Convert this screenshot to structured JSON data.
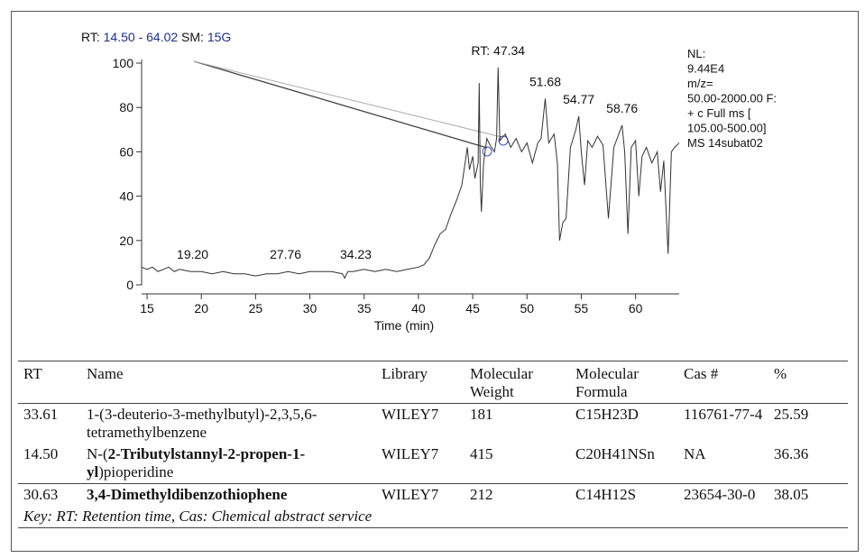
{
  "chart_data": {
    "type": "line",
    "header": {
      "rt_label": "RT:",
      "rt_range": "14.50 - 64.02",
      "sm_label": "SM:",
      "sm_value": "15G"
    },
    "info": [
      "NL:",
      "9.44E4",
      "m/z=",
      "50.00-2000.00 F:",
      "+ c Full ms [",
      "105.00-500.00]",
      "MS 14subat02"
    ],
    "xlabel": "Time (min)",
    "color": "#333333",
    "xlim": [
      14.5,
      64.02
    ],
    "xticks": [
      15,
      20,
      25,
      30,
      35,
      40,
      45,
      50,
      55,
      60
    ],
    "ylim": [
      0,
      100
    ],
    "yticks": [
      0,
      20,
      40,
      60,
      80,
      100
    ],
    "x": [
      14.5,
      15,
      15.5,
      16,
      16.5,
      17,
      17.5,
      18,
      19,
      20,
      21,
      22,
      23,
      24,
      25,
      26,
      27,
      28,
      29,
      30,
      31,
      32,
      33,
      33.2,
      33.5,
      34,
      35,
      36,
      37,
      38,
      39,
      40,
      40.5,
      41,
      41.5,
      42,
      42.5,
      43,
      43.5,
      44,
      44.3,
      44.5,
      44.7,
      45,
      45.2,
      45.5,
      45.6,
      45.7,
      45.8,
      46,
      46.3,
      46.6,
      47,
      47.2,
      47.34,
      47.5,
      48,
      48.5,
      49,
      49.5,
      50,
      50.5,
      51,
      51.3,
      51.68,
      52,
      52.5,
      52.8,
      53,
      53.3,
      53.6,
      54,
      54.5,
      54.77,
      55,
      55.3,
      55.6,
      56,
      56.5,
      57,
      57.5,
      58,
      58.76,
      59,
      59.3,
      59.6,
      60,
      60.3,
      60.6,
      61,
      61.5,
      62,
      62.3,
      62.6,
      63,
      63.3,
      63.6,
      64.02
    ],
    "values": [
      8,
      7,
      8,
      6,
      7,
      8,
      6,
      7,
      6,
      6,
      5,
      6,
      5,
      5,
      4,
      5,
      5,
      6,
      5,
      6,
      6,
      6,
      5,
      3,
      6,
      6,
      7,
      6,
      7,
      6,
      7,
      8,
      9,
      12,
      18,
      23,
      25,
      32,
      38,
      45,
      55,
      62,
      52,
      58,
      48,
      55,
      91,
      45,
      33,
      55,
      66,
      63,
      60,
      66,
      98,
      65,
      68,
      62,
      66,
      60,
      64,
      55,
      64,
      66,
      84,
      64,
      68,
      55,
      20,
      28,
      30,
      62,
      70,
      76,
      60,
      45,
      65,
      62,
      67,
      63,
      30,
      62,
      72,
      60,
      23,
      62,
      65,
      40,
      58,
      62,
      55,
      60,
      42,
      56,
      14,
      60,
      62,
      64
    ],
    "peak_labels": [
      {
        "value": 19.2,
        "label": "19.20"
      },
      {
        "value": 27.76,
        "label": "27.76"
      },
      {
        "value": 34.23,
        "label": "34.23"
      },
      {
        "value": 47.34,
        "label": "RT: 47.34"
      },
      {
        "value": 51.68,
        "label": "51.68"
      },
      {
        "value": 54.77,
        "label": "54.77"
      },
      {
        "value": 58.76,
        "label": "58.76"
      }
    ]
  },
  "table": {
    "header": [
      "RT",
      "Name",
      "Library",
      "Molecular Weight",
      "Molecular Formula",
      "Cas #",
      "%"
    ],
    "rows": [
      [
        "33.61",
        "1-(3-deuterio-3-methylbutyl)-2,3,5,6-tetramethylbenzene",
        "WILEY7",
        "181",
        "C15H23D",
        "116761-77-4",
        "25.59"
      ],
      [
        "14.50",
        [
          "N-(",
          "2-Tributylstannyl-2-propen-1-yl",
          ")pioperidine"
        ],
        "WILEY7",
        "415",
        "C20H41NSn",
        "NA",
        "36.36"
      ],
      [
        "30.63",
        "3,4-Dimethyldibenzothiophene",
        "WILEY7",
        "212",
        "C14H12S",
        "23654-30-0",
        "38.05"
      ]
    ],
    "key": "Key: RT: Retention time, Cas: Chemical abstract service"
  }
}
